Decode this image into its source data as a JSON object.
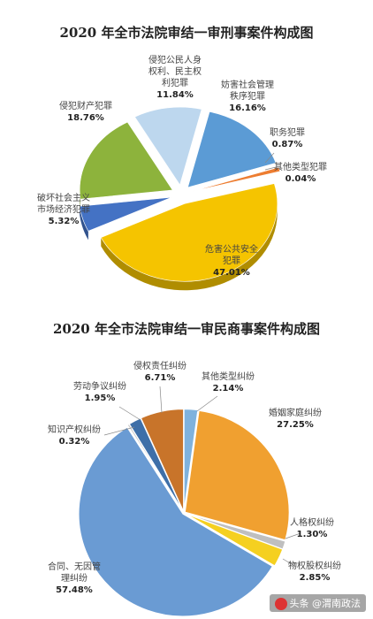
{
  "chart_data": [
    {
      "type": "pie",
      "title": "2020 年全市法院审结一审刑事案件构成图",
      "style": "3d-exploded",
      "slices": [
        {
          "label": [
            "危害公共安全",
            "犯罪"
          ],
          "value": 47.01,
          "value_label": "47.01%",
          "color": "#F5C400"
        },
        {
          "label": [
            "破坏社会主义",
            "市场经济犯罪"
          ],
          "value": 5.32,
          "value_label": "5.32%",
          "color": "#4472C4"
        },
        {
          "label": [
            "侵犯财产犯罪"
          ],
          "value": 18.76,
          "value_label": "18.76%",
          "color": "#8DB33C"
        },
        {
          "label": [
            "侵犯公民人身",
            "权利、民主权",
            "利犯罪"
          ],
          "value": 11.84,
          "value_label": "11.84%",
          "color": "#BDD7EE"
        },
        {
          "label": [
            "妨害社会管理",
            "秩序犯罪"
          ],
          "value": 16.16,
          "value_label": "16.16%",
          "color": "#5B9BD5"
        },
        {
          "label": [
            "职务犯罪"
          ],
          "value": 0.87,
          "value_label": "0.87%",
          "color": "#ED7D31"
        },
        {
          "label": [
            "其他类型犯罪"
          ],
          "value": 0.04,
          "value_label": "0.04%",
          "color": "#A5A5A5"
        }
      ]
    },
    {
      "type": "pie",
      "title": "2020 年全市法院审结一审民商事案件构成图",
      "slices": [
        {
          "label": [
            "其他类型纠纷"
          ],
          "value": 2.14,
          "value_label": "2.14%",
          "color": "#7FB2DD"
        },
        {
          "label": [
            "婚姻家庭纠纷"
          ],
          "value": 27.25,
          "value_label": "27.25%",
          "color": "#F0A030"
        },
        {
          "label": [
            "人格权纠纷"
          ],
          "value": 1.3,
          "value_label": "1.30%",
          "color": "#BFBFBF"
        },
        {
          "label": [
            "物权股权纠纷"
          ],
          "value": 2.85,
          "value_label": "2.85%",
          "color": "#F5D020"
        },
        {
          "label": [
            "合同、无因管",
            "理纠纷"
          ],
          "value": 57.48,
          "value_label": "57.48%",
          "color": "#6A9BD3"
        },
        {
          "label": [
            "知识产权纠纷"
          ],
          "value": 0.32,
          "value_label": "0.32%",
          "color": "#C8C8C8"
        },
        {
          "label": [
            "劳动争议纠纷"
          ],
          "value": 1.95,
          "value_label": "1.95%",
          "color": "#3E6FA8"
        },
        {
          "label": [
            "侵权责任纠纷"
          ],
          "value": 6.71,
          "value_label": "6.71%",
          "color": "#C8742A"
        }
      ]
    }
  ],
  "watermark": {
    "text": "头条 @渭南政法"
  }
}
